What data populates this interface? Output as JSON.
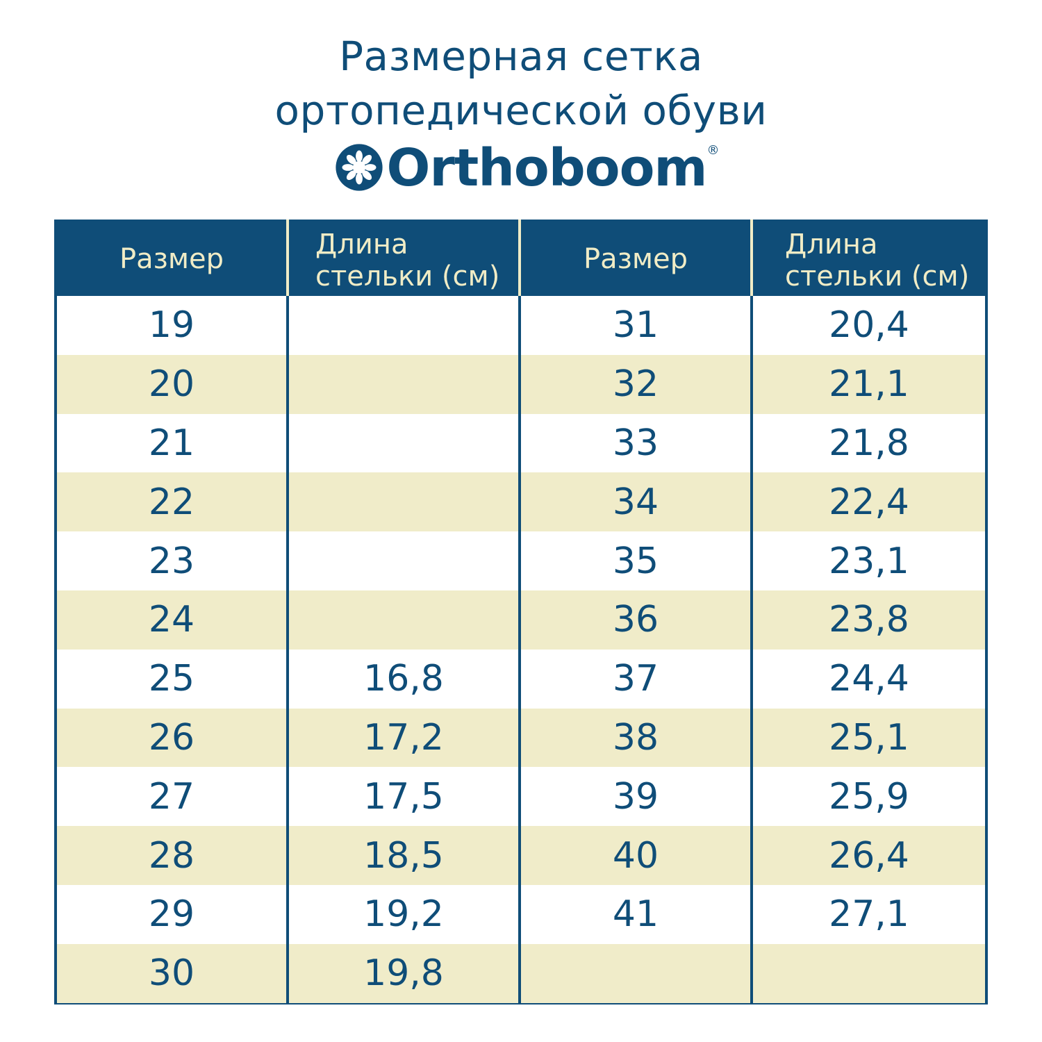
{
  "title_line1": "Размерная сетка",
  "title_line2": "ортопедической обуви",
  "brand": "Orthoboom",
  "brand_reg": "®",
  "headers": [
    "Размер",
    "Длина стельки (см)",
    "Размер",
    "Длина стельки (см)"
  ],
  "header_line_a": "Длина",
  "header_line_b": "стельки (см)",
  "left_sizes": [
    "19",
    "20",
    "21",
    "22",
    "23",
    "24",
    "25",
    "26",
    "27",
    "28",
    "29",
    "30"
  ],
  "left_lengths": [
    "",
    "",
    "",
    "",
    "",
    "",
    "16,8",
    "17,2",
    "17,5",
    "18,5",
    "19,2",
    "19,8"
  ],
  "right_sizes": [
    "31",
    "32",
    "33",
    "34",
    "35",
    "36",
    "37",
    "38",
    "39",
    "40",
    "41",
    ""
  ],
  "right_lengths": [
    "20,4",
    "21,1",
    "21,8",
    "22,4",
    "23,1",
    "23,8",
    "24,4",
    "25,1",
    "25,9",
    "26,4",
    "27,1",
    ""
  ],
  "colors": {
    "primary": "#0f4d78",
    "stripe": "#f0ecc9",
    "header_text": "#f0ecc6"
  }
}
